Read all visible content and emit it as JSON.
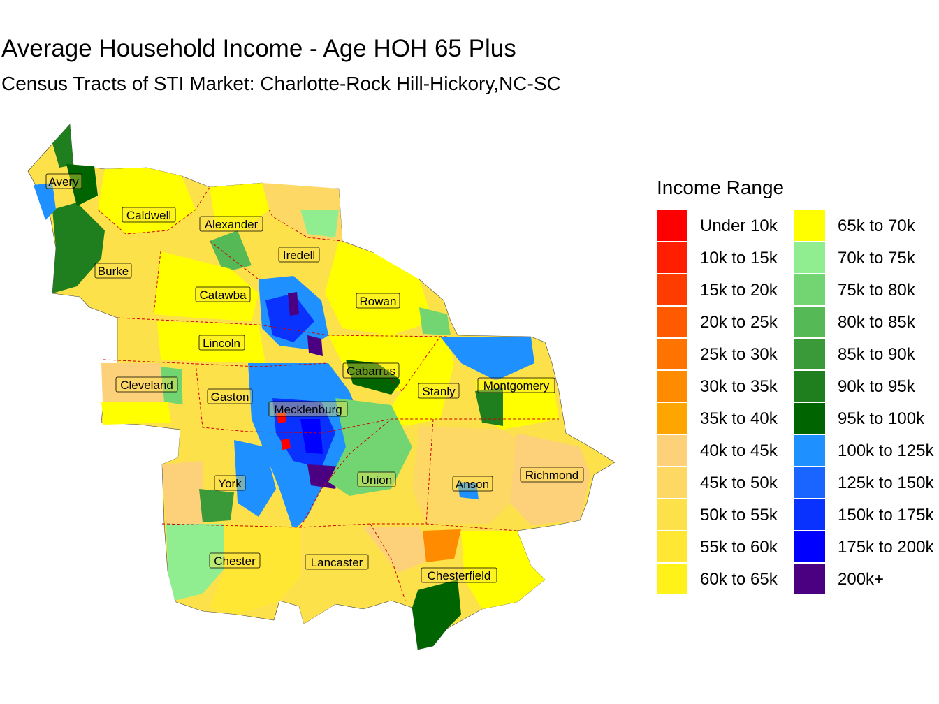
{
  "title": "Average Household Income - Age HOH 65 Plus",
  "subtitle": "Census Tracts of STI Market: Charlotte-Rock Hill-Hickory,NC-SC",
  "legend": {
    "title": "Income Range",
    "items": [
      {
        "label": "Under 10k",
        "color": "#ff0000"
      },
      {
        "label": "10k to 15k",
        "color": "#ff1e00"
      },
      {
        "label": "15k to 20k",
        "color": "#ff3c00"
      },
      {
        "label": "20k to 25k",
        "color": "#ff5a00"
      },
      {
        "label": "25k to 30k",
        "color": "#ff7300"
      },
      {
        "label": "30k to 35k",
        "color": "#ff8c00"
      },
      {
        "label": "35k to 40k",
        "color": "#ffa500"
      },
      {
        "label": "40k to 45k",
        "color": "#fdd07a"
      },
      {
        "label": "45k to 50k",
        "color": "#fdd865"
      },
      {
        "label": "50k to 55k",
        "color": "#fde14a"
      },
      {
        "label": "55k to 60k",
        "color": "#ffe733"
      },
      {
        "label": "60k to 65k",
        "color": "#fff218"
      },
      {
        "label": "65k to 70k",
        "color": "#ffff00"
      },
      {
        "label": "70k to 75k",
        "color": "#90ee90"
      },
      {
        "label": "75k to 80k",
        "color": "#72d572"
      },
      {
        "label": "80k to 85k",
        "color": "#55b955"
      },
      {
        "label": "85k to 90k",
        "color": "#3a9a3a"
      },
      {
        "label": "90k to 95k",
        "color": "#1f7f1f"
      },
      {
        "label": "95k to 100k",
        "color": "#006400"
      },
      {
        "label": "100k to 125k",
        "color": "#1e90ff"
      },
      {
        "label": "125k to 150k",
        "color": "#1a64ff"
      },
      {
        "label": "150k to 175k",
        "color": "#0a32ff"
      },
      {
        "label": "175k to 200k",
        "color": "#0000ff"
      },
      {
        "label": "200k+",
        "color": "#4b0082"
      }
    ]
  },
  "counties": [
    {
      "name": "Avery"
    },
    {
      "name": "Caldwell"
    },
    {
      "name": "Alexander"
    },
    {
      "name": "Iredell"
    },
    {
      "name": "Burke"
    },
    {
      "name": "Catawba"
    },
    {
      "name": "Rowan"
    },
    {
      "name": "Lincoln"
    },
    {
      "name": "Cabarrus"
    },
    {
      "name": "Cleveland"
    },
    {
      "name": "Gaston"
    },
    {
      "name": "Stanly"
    },
    {
      "name": "Montgomery"
    },
    {
      "name": "Mecklenburg"
    },
    {
      "name": "York"
    },
    {
      "name": "Union"
    },
    {
      "name": "Anson"
    },
    {
      "name": "Richmond"
    },
    {
      "name": "Chester"
    },
    {
      "name": "Lancaster"
    },
    {
      "name": "Chesterfield"
    }
  ]
}
